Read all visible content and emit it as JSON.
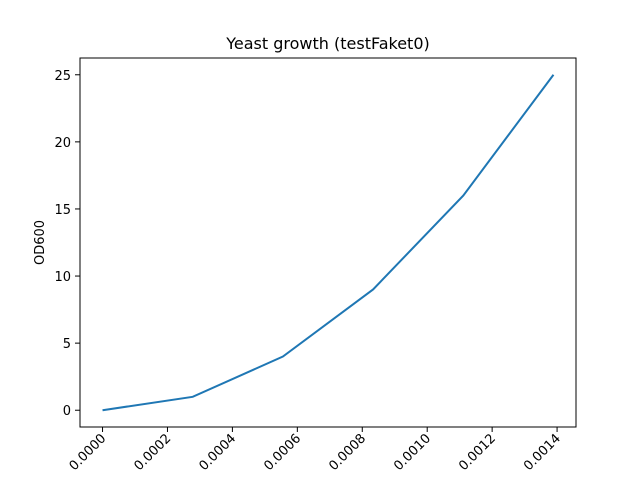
{
  "chart_data": {
    "type": "line",
    "title": "Yeast growth (testFaket0)",
    "xlabel": "",
    "ylabel": "OD600",
    "xlim": [
      -6.94e-05,
      0.0014583
    ],
    "ylim": [
      -1.25,
      26.25
    ],
    "grid": false,
    "x_ticks": [
      0.0,
      0.0002,
      0.0004,
      0.0006,
      0.0008,
      0.001,
      0.0012,
      0.0014
    ],
    "x_tick_labels": [
      "0.0000",
      "0.0002",
      "0.0004",
      "0.0006",
      "0.0008",
      "0.0010",
      "0.0012",
      "0.0014"
    ],
    "y_ticks": [
      0,
      5,
      10,
      15,
      20,
      25
    ],
    "y_tick_labels": [
      "0",
      "5",
      "10",
      "15",
      "20",
      "25"
    ],
    "series": [
      {
        "color": "#1f77b4",
        "x": [
          0.0,
          0.0002778,
          0.0005556,
          0.0008333,
          0.0011111,
          0.0013889
        ],
        "y": [
          0,
          1,
          4,
          9,
          16,
          25
        ]
      }
    ]
  }
}
